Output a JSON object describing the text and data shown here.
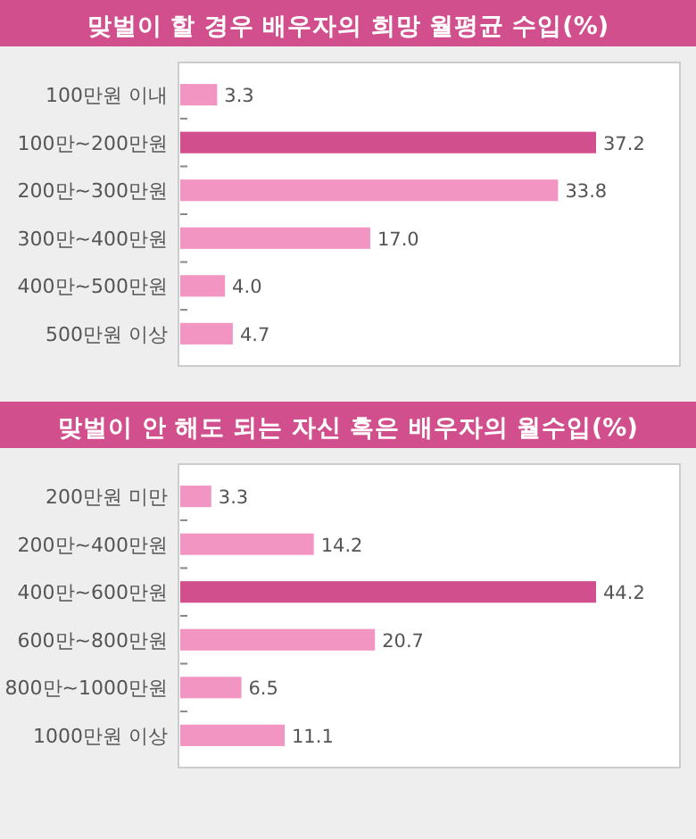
{
  "chart_data": [
    {
      "type": "bar",
      "orientation": "horizontal",
      "title": "맞벌이 할 경우 배우자의 희망 월평균 수입(%)",
      "categories": [
        "100만원 이내",
        "100만~200만원",
        "200만~300만원",
        "300만~400만원",
        "400만~500만원",
        "500만원 이상"
      ],
      "values": [
        3.3,
        37.2,
        33.8,
        17.0,
        4.0,
        4.7
      ],
      "colors": [
        "#f395c3",
        "#d14f8c",
        "#f395c3",
        "#f395c3",
        "#f395c3",
        "#f395c3"
      ],
      "value_labels": [
        "3.3",
        "37.2",
        "33.8",
        "17.0",
        "4.0",
        "4.7"
      ]
    },
    {
      "type": "bar",
      "orientation": "horizontal",
      "title": "맞벌이 안 해도 되는 자신 혹은 배우자의 월수입(%)",
      "categories": [
        "200만원 미만",
        "200만~400만원",
        "400만~600만원",
        "600만~800만원",
        "800만~1000만원",
        "1000만원 이상"
      ],
      "values": [
        3.3,
        14.2,
        44.2,
        20.7,
        6.5,
        11.1
      ],
      "colors": [
        "#f395c3",
        "#f395c3",
        "#d14f8c",
        "#f395c3",
        "#f395c3",
        "#f395c3"
      ],
      "value_labels": [
        "3.3",
        "14.2",
        "44.2",
        "20.7",
        "6.5",
        "11.1"
      ]
    }
  ]
}
